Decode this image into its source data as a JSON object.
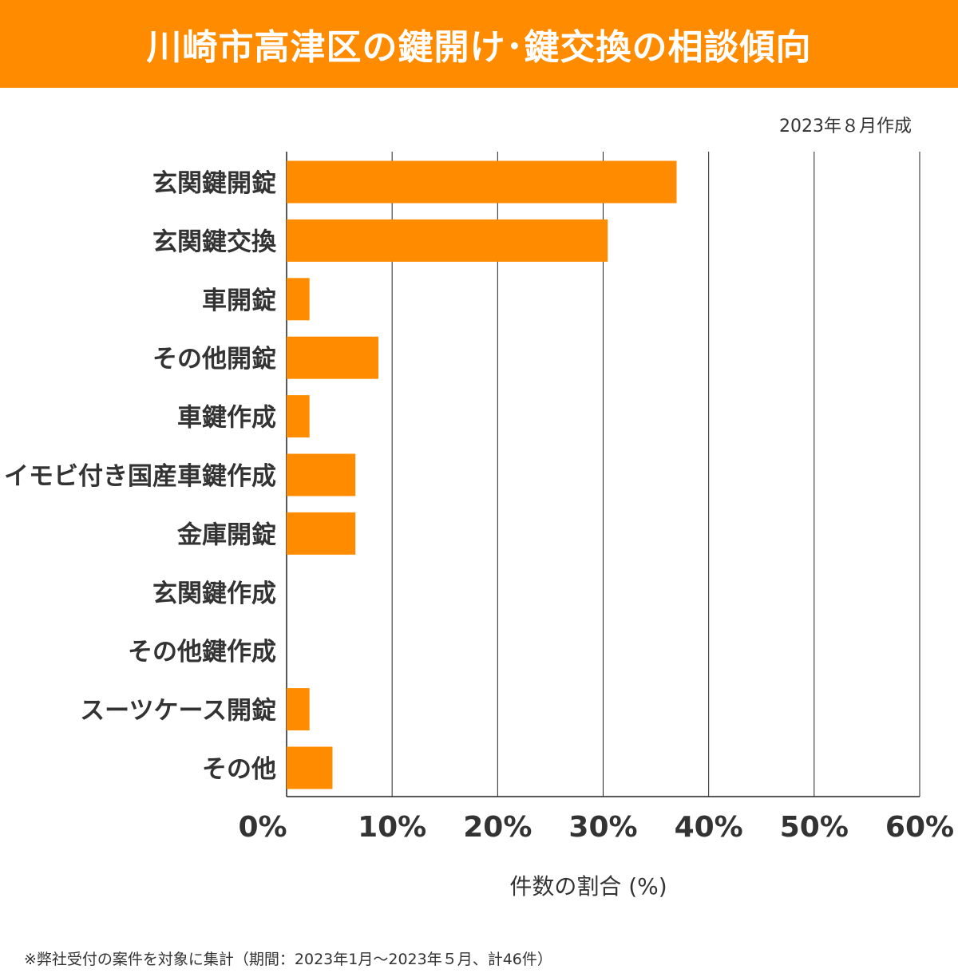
{
  "header": {
    "title": "川崎市高津区の鍵開け･鍵交換の相談傾向"
  },
  "date_note": "2023年８月作成",
  "footnote": "※弊社受付の案件を対象に集計（期間：2023年1月～2023年５月、計46件）",
  "colors": {
    "accent": "#FF8C00",
    "text": "#333333"
  },
  "chart_data": {
    "type": "bar",
    "orientation": "horizontal",
    "title": "川崎市高津区の鍵開け･鍵交換の相談傾向",
    "categories": [
      "玄関鍵開錠",
      "玄関鍵交換",
      "車開錠",
      "その他開錠",
      "車鍵作成",
      "イモビ付き国産車鍵作成",
      "金庫開錠",
      "玄関鍵作成",
      "その他鍵作成",
      "スーツケース開錠",
      "その他"
    ],
    "values": [
      36.96,
      30.43,
      2.17,
      8.7,
      2.17,
      6.52,
      6.52,
      0,
      0,
      2.17,
      4.35
    ],
    "xlabel": "件数の割合 (%)",
    "ylabel": "",
    "xlim": [
      0,
      60
    ],
    "xticks": [
      0,
      10,
      20,
      30,
      40,
      50,
      60
    ],
    "xtick_labels": [
      "0%",
      "10%",
      "20%",
      "30%",
      "40%",
      "50%",
      "60%"
    ],
    "grid": "vertical",
    "bar_color": "#FF8C00"
  }
}
